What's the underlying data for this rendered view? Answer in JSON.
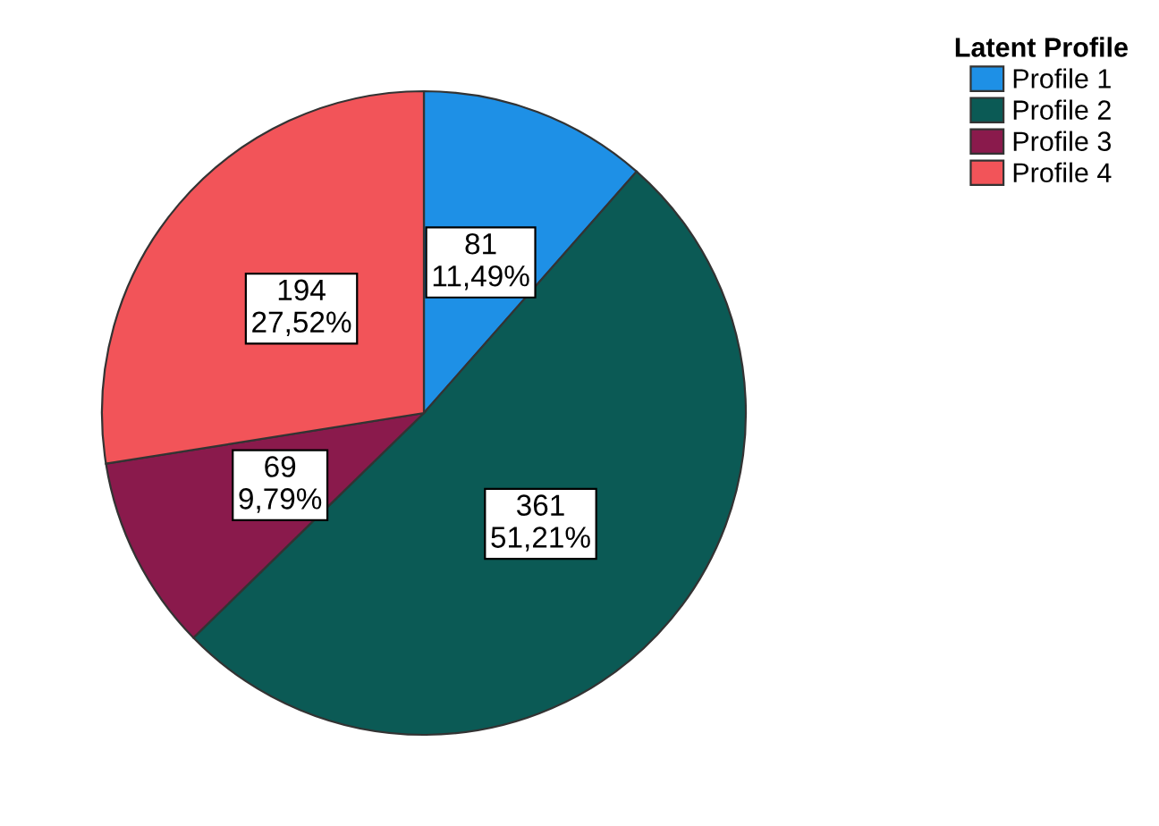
{
  "chart_data": {
    "type": "pie",
    "legend_title": "Latent Profile",
    "categories": [
      "Profile 1",
      "Profile 2",
      "Profile 3",
      "Profile 4"
    ],
    "values": [
      81,
      361,
      69,
      194
    ],
    "value_labels": [
      "81\n11,49%",
      "361\n51,21%",
      "69\n9,79%",
      "194\n27,52%"
    ],
    "colors": [
      "#1e90e6",
      "#0b5a55",
      "#8a1a4c",
      "#f25459"
    ],
    "legend": "top right"
  }
}
